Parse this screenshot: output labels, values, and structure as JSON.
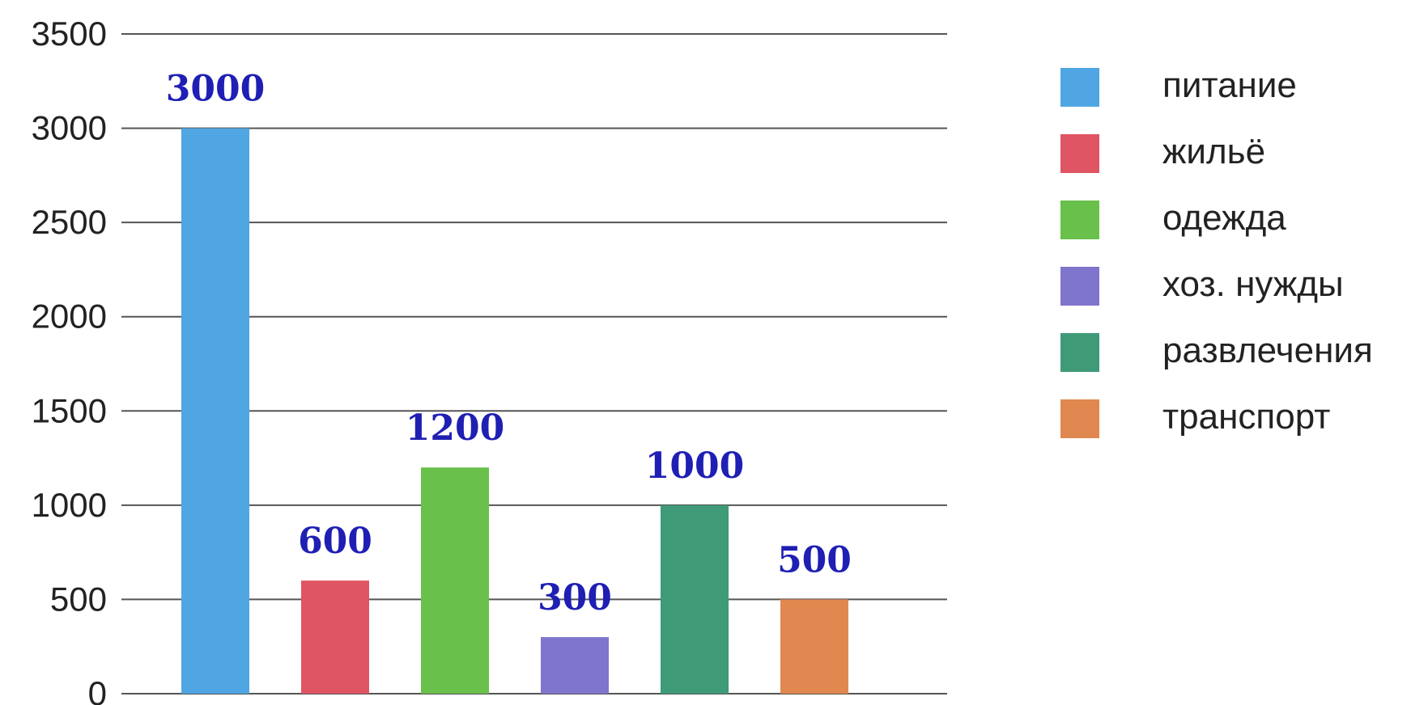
{
  "chart_data": {
    "type": "bar",
    "categories": [
      "питание",
      "жильё",
      "одежда",
      "хоз. нужды",
      "развлечения",
      "транспорт"
    ],
    "values": [
      3000,
      600,
      1200,
      300,
      1000,
      500
    ],
    "data_labels": [
      "3000",
      "600",
      "1200",
      "300",
      "1000",
      "500"
    ],
    "colors": [
      "#4fa6e3",
      "#e05563",
      "#69c04a",
      "#7f75cc",
      "#3f9a78",
      "#e0884f"
    ],
    "ylim": [
      0,
      3500
    ],
    "yticks": [
      0,
      500,
      1000,
      1500,
      2000,
      2500,
      3000,
      3500
    ],
    "ytick_labels": [
      "0",
      "500",
      "1000",
      "1500",
      "2000",
      "2500",
      "3000",
      "3500"
    ],
    "grid": true,
    "legend": {
      "position": "right",
      "entries": [
        "питание",
        "жильё",
        "одежда",
        "хоз. нужды",
        "развлечения",
        "транспорт"
      ]
    },
    "title": "",
    "xlabel": "",
    "ylabel": "",
    "data_label_color": "#1f1fb4"
  }
}
